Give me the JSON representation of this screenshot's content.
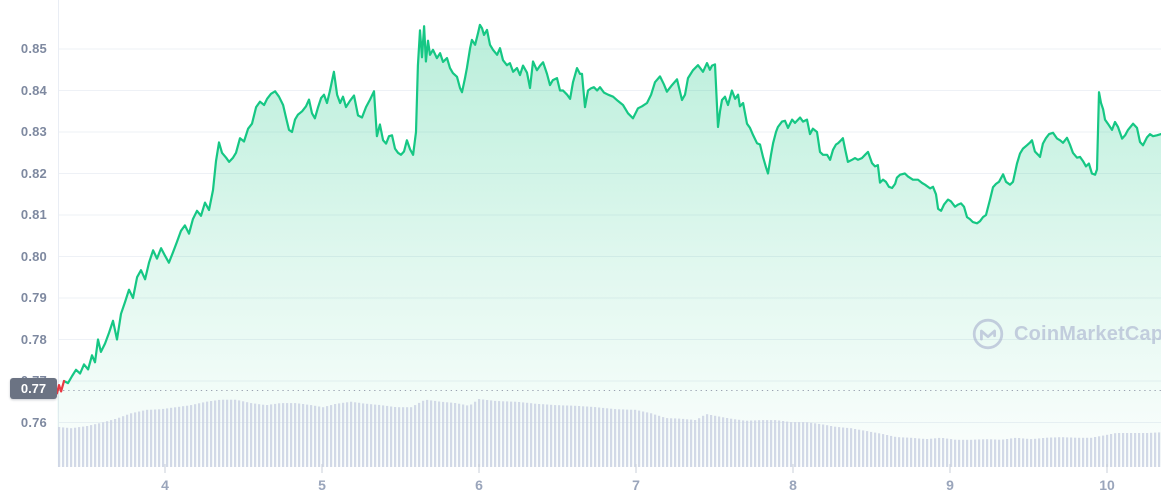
{
  "watermark": {
    "label": "CoinMarketCap"
  },
  "chart_data": {
    "type": "area",
    "title": "",
    "xlabel": "",
    "ylabel": "",
    "legend": "none",
    "grid": "horizontal",
    "x_axis": {
      "ticks": [
        "4",
        "5",
        "6",
        "7",
        "8",
        "9",
        "10"
      ],
      "range": [
        3.312,
        10.344
      ]
    },
    "y_axis": {
      "ticks": [
        "0.85",
        "0.84",
        "0.83",
        "0.82",
        "0.81",
        "0.80",
        "0.79",
        "0.78",
        "0.77",
        "0.76"
      ],
      "range": [
        0.749,
        0.862
      ]
    },
    "current_price_label": "0.77",
    "dotted_price_level": 0.7677,
    "red_until_day": 3.36,
    "colors": {
      "line_up": "#16c784",
      "line_down": "#ea3943",
      "fill_base": "22,199,132",
      "volume_bar": "#ccd3e4",
      "gridline": "#eef1f6",
      "axis_line": "#e9edf4",
      "dotted_line": "#9aa2b1",
      "tick_mark": "#c9cfda",
      "y_text": "#7e89a0",
      "x_text": "#9aa5bb",
      "badge_bg": "#6b7383",
      "watermark": "#aab3cf"
    },
    "price_series": [
      [
        3.312,
        0.767
      ],
      [
        3.325,
        0.769
      ],
      [
        3.338,
        0.7675
      ],
      [
        3.357,
        0.77
      ],
      [
        3.382,
        0.7695
      ],
      [
        3.408,
        0.7712
      ],
      [
        3.433,
        0.7727
      ],
      [
        3.459,
        0.7718
      ],
      [
        3.484,
        0.774
      ],
      [
        3.51,
        0.7728
      ],
      [
        3.535,
        0.7762
      ],
      [
        3.554,
        0.7745
      ],
      [
        3.573,
        0.78
      ],
      [
        3.592,
        0.777
      ],
      [
        3.618,
        0.779
      ],
      [
        3.643,
        0.7816
      ],
      [
        3.669,
        0.7845
      ],
      [
        3.694,
        0.78
      ],
      [
        3.72,
        0.7862
      ],
      [
        3.745,
        0.789
      ],
      [
        3.771,
        0.792
      ],
      [
        3.796,
        0.79
      ],
      [
        3.822,
        0.795
      ],
      [
        3.847,
        0.7967
      ],
      [
        3.873,
        0.7945
      ],
      [
        3.898,
        0.7985
      ],
      [
        3.924,
        0.8015
      ],
      [
        3.949,
        0.7995
      ],
      [
        3.975,
        0.802
      ],
      [
        4.0,
        0.8002
      ],
      [
        4.025,
        0.7985
      ],
      [
        4.051,
        0.801
      ],
      [
        4.076,
        0.8035
      ],
      [
        4.102,
        0.8062
      ],
      [
        4.127,
        0.8075
      ],
      [
        4.153,
        0.8055
      ],
      [
        4.178,
        0.809
      ],
      [
        4.204,
        0.811
      ],
      [
        4.229,
        0.8098
      ],
      [
        4.255,
        0.813
      ],
      [
        4.28,
        0.8112
      ],
      [
        4.306,
        0.816
      ],
      [
        4.325,
        0.823
      ],
      [
        4.344,
        0.8275
      ],
      [
        4.363,
        0.825
      ],
      [
        4.389,
        0.8238
      ],
      [
        4.408,
        0.8228
      ],
      [
        4.433,
        0.8238
      ],
      [
        4.452,
        0.825
      ],
      [
        4.478,
        0.8285
      ],
      [
        4.503,
        0.8277
      ],
      [
        4.529,
        0.8308
      ],
      [
        4.554,
        0.832
      ],
      [
        4.58,
        0.836
      ],
      [
        4.605,
        0.8373
      ],
      [
        4.631,
        0.8365
      ],
      [
        4.65,
        0.838
      ],
      [
        4.675,
        0.8392
      ],
      [
        4.701,
        0.8398
      ],
      [
        4.726,
        0.8385
      ],
      [
        4.752,
        0.8365
      ],
      [
        4.771,
        0.8335
      ],
      [
        4.79,
        0.8305
      ],
      [
        4.809,
        0.83
      ],
      [
        4.828,
        0.833
      ],
      [
        4.847,
        0.8342
      ],
      [
        4.873,
        0.835
      ],
      [
        4.898,
        0.8362
      ],
      [
        4.917,
        0.8378
      ],
      [
        4.936,
        0.8345
      ],
      [
        4.955,
        0.8333
      ],
      [
        4.975,
        0.836
      ],
      [
        4.994,
        0.8382
      ],
      [
        5.013,
        0.839
      ],
      [
        5.032,
        0.837
      ],
      [
        5.051,
        0.84
      ],
      [
        5.076,
        0.8445
      ],
      [
        5.096,
        0.839
      ],
      [
        5.115,
        0.837
      ],
      [
        5.134,
        0.8385
      ],
      [
        5.153,
        0.836
      ],
      [
        5.178,
        0.8375
      ],
      [
        5.204,
        0.8388
      ],
      [
        5.229,
        0.834
      ],
      [
        5.255,
        0.8335
      ],
      [
        5.28,
        0.836
      ],
      [
        5.306,
        0.8378
      ],
      [
        5.331,
        0.8398
      ],
      [
        5.35,
        0.829
      ],
      [
        5.369,
        0.8318
      ],
      [
        5.389,
        0.828
      ],
      [
        5.408,
        0.8272
      ],
      [
        5.427,
        0.829
      ],
      [
        5.446,
        0.8292
      ],
      [
        5.465,
        0.826
      ],
      [
        5.484,
        0.825
      ],
      [
        5.503,
        0.8245
      ],
      [
        5.522,
        0.8253
      ],
      [
        5.541,
        0.828
      ],
      [
        5.561,
        0.8258
      ],
      [
        5.58,
        0.8245
      ],
      [
        5.599,
        0.83
      ],
      [
        5.611,
        0.846
      ],
      [
        5.624,
        0.8545
      ],
      [
        5.637,
        0.848
      ],
      [
        5.65,
        0.8555
      ],
      [
        5.662,
        0.847
      ],
      [
        5.675,
        0.852
      ],
      [
        5.688,
        0.8486
      ],
      [
        5.707,
        0.8498
      ],
      [
        5.732,
        0.8478
      ],
      [
        5.752,
        0.849
      ],
      [
        5.771,
        0.8469
      ],
      [
        5.796,
        0.8478
      ],
      [
        5.815,
        0.8454
      ],
      [
        5.834,
        0.8442
      ],
      [
        5.86,
        0.8433
      ],
      [
        5.879,
        0.8406
      ],
      [
        5.892,
        0.8396
      ],
      [
        5.911,
        0.843
      ],
      [
        5.923,
        0.8454
      ],
      [
        5.943,
        0.8502
      ],
      [
        5.955,
        0.8522
      ],
      [
        5.975,
        0.851
      ],
      [
        5.994,
        0.8539
      ],
      [
        6.006,
        0.8558
      ],
      [
        6.019,
        0.855
      ],
      [
        6.032,
        0.8534
      ],
      [
        6.051,
        0.8546
      ],
      [
        6.07,
        0.851
      ],
      [
        6.089,
        0.8498
      ],
      [
        6.115,
        0.8486
      ],
      [
        6.134,
        0.8502
      ],
      [
        6.153,
        0.8473
      ],
      [
        6.178,
        0.8461
      ],
      [
        6.197,
        0.8466
      ],
      [
        6.217,
        0.8445
      ],
      [
        6.242,
        0.8454
      ],
      [
        6.261,
        0.8437
      ],
      [
        6.28,
        0.846
      ],
      [
        6.306,
        0.8443
      ],
      [
        6.325,
        0.8406
      ],
      [
        6.344,
        0.847
      ],
      [
        6.369,
        0.8449
      ],
      [
        6.389,
        0.846
      ],
      [
        6.408,
        0.8468
      ],
      [
        6.433,
        0.844
      ],
      [
        6.452,
        0.8413
      ],
      [
        6.471,
        0.8425
      ],
      [
        6.497,
        0.843
      ],
      [
        6.516,
        0.84
      ],
      [
        6.535,
        0.84
      ],
      [
        6.561,
        0.839
      ],
      [
        6.58,
        0.838
      ],
      [
        6.599,
        0.842
      ],
      [
        6.624,
        0.8454
      ],
      [
        6.643,
        0.844
      ],
      [
        6.656,
        0.844
      ],
      [
        6.675,
        0.836
      ],
      [
        6.694,
        0.84
      ],
      [
        6.713,
        0.8405
      ],
      [
        6.732,
        0.8408
      ],
      [
        6.752,
        0.84
      ],
      [
        6.771,
        0.8408
      ],
      [
        6.796,
        0.8395
      ],
      [
        6.822,
        0.839
      ],
      [
        6.854,
        0.8385
      ],
      [
        6.885,
        0.8375
      ],
      [
        6.917,
        0.8365
      ],
      [
        6.949,
        0.8345
      ],
      [
        6.981,
        0.8333
      ],
      [
        7.013,
        0.8357
      ],
      [
        7.038,
        0.8362
      ],
      [
        7.07,
        0.837
      ],
      [
        7.096,
        0.839
      ],
      [
        7.121,
        0.842
      ],
      [
        7.153,
        0.8434
      ],
      [
        7.178,
        0.8415
      ],
      [
        7.197,
        0.8397
      ],
      [
        7.229,
        0.8413
      ],
      [
        7.261,
        0.8427
      ],
      [
        7.293,
        0.8377
      ],
      [
        7.312,
        0.839
      ],
      [
        7.331,
        0.843
      ],
      [
        7.363,
        0.8449
      ],
      [
        7.395,
        0.8461
      ],
      [
        7.427,
        0.8445
      ],
      [
        7.452,
        0.8466
      ],
      [
        7.471,
        0.845
      ],
      [
        7.484,
        0.846
      ],
      [
        7.503,
        0.8463
      ],
      [
        7.522,
        0.8312
      ],
      [
        7.535,
        0.835
      ],
      [
        7.548,
        0.8377
      ],
      [
        7.567,
        0.8385
      ],
      [
        7.586,
        0.8365
      ],
      [
        7.611,
        0.84
      ],
      [
        7.631,
        0.838
      ],
      [
        7.65,
        0.839
      ],
      [
        7.662,
        0.8362
      ],
      [
        7.682,
        0.837
      ],
      [
        7.707,
        0.832
      ],
      [
        7.726,
        0.831
      ],
      [
        7.745,
        0.8293
      ],
      [
        7.771,
        0.8273
      ],
      [
        7.79,
        0.827
      ],
      [
        7.809,
        0.824
      ],
      [
        7.828,
        0.8215
      ],
      [
        7.841,
        0.82
      ],
      [
        7.86,
        0.8245
      ],
      [
        7.873,
        0.8273
      ],
      [
        7.892,
        0.83
      ],
      [
        7.904,
        0.8312
      ],
      [
        7.93,
        0.8325
      ],
      [
        7.949,
        0.8327
      ],
      [
        7.968,
        0.831
      ],
      [
        7.994,
        0.833
      ],
      [
        8.013,
        0.8322
      ],
      [
        8.045,
        0.8335
      ],
      [
        8.064,
        0.8325
      ],
      [
        8.089,
        0.833
      ],
      [
        8.108,
        0.8295
      ],
      [
        8.127,
        0.8308
      ],
      [
        8.153,
        0.83
      ],
      [
        8.172,
        0.8252
      ],
      [
        8.191,
        0.8245
      ],
      [
        8.217,
        0.8245
      ],
      [
        8.236,
        0.8233
      ],
      [
        8.255,
        0.8257
      ],
      [
        8.274,
        0.827
      ],
      [
        8.287,
        0.8273
      ],
      [
        8.306,
        0.828
      ],
      [
        8.318,
        0.8285
      ],
      [
        8.331,
        0.826
      ],
      [
        8.35,
        0.8228
      ],
      [
        8.376,
        0.8233
      ],
      [
        8.395,
        0.8237
      ],
      [
        8.414,
        0.8233
      ],
      [
        8.439,
        0.8237
      ],
      [
        8.459,
        0.8245
      ],
      [
        8.478,
        0.8252
      ],
      [
        8.503,
        0.8225
      ],
      [
        8.522,
        0.8217
      ],
      [
        8.541,
        0.822
      ],
      [
        8.554,
        0.8178
      ],
      [
        8.573,
        0.8185
      ],
      [
        8.592,
        0.818
      ],
      [
        8.611,
        0.8168
      ],
      [
        8.631,
        0.8165
      ],
      [
        8.65,
        0.8175
      ],
      [
        8.662,
        0.819
      ],
      [
        8.682,
        0.8197
      ],
      [
        8.713,
        0.82
      ],
      [
        8.732,
        0.8193
      ],
      [
        8.764,
        0.8185
      ],
      [
        8.796,
        0.8185
      ],
      [
        8.822,
        0.8177
      ],
      [
        8.841,
        0.8173
      ],
      [
        8.873,
        0.8164
      ],
      [
        8.892,
        0.8168
      ],
      [
        8.911,
        0.815
      ],
      [
        8.924,
        0.8115
      ],
      [
        8.943,
        0.811
      ],
      [
        8.962,
        0.8125
      ],
      [
        8.987,
        0.8137
      ],
      [
        9.006,
        0.8133
      ],
      [
        9.032,
        0.812
      ],
      [
        9.051,
        0.8125
      ],
      [
        9.07,
        0.8128
      ],
      [
        9.089,
        0.812
      ],
      [
        9.108,
        0.8095
      ],
      [
        9.127,
        0.809
      ],
      [
        9.146,
        0.8083
      ],
      [
        9.172,
        0.808
      ],
      [
        9.191,
        0.8085
      ],
      [
        9.21,
        0.8095
      ],
      [
        9.229,
        0.81
      ],
      [
        9.255,
        0.8137
      ],
      [
        9.274,
        0.8167
      ],
      [
        9.293,
        0.8175
      ],
      [
        9.312,
        0.818
      ],
      [
        9.338,
        0.8198
      ],
      [
        9.357,
        0.818
      ],
      [
        9.382,
        0.8173
      ],
      [
        9.401,
        0.818
      ],
      [
        9.427,
        0.8224
      ],
      [
        9.446,
        0.8248
      ],
      [
        9.465,
        0.826
      ],
      [
        9.49,
        0.8268
      ],
      [
        9.51,
        0.8275
      ],
      [
        9.522,
        0.828
      ],
      [
        9.541,
        0.8253
      ],
      [
        9.561,
        0.8245
      ],
      [
        9.573,
        0.824
      ],
      [
        9.592,
        0.8272
      ],
      [
        9.611,
        0.8285
      ],
      [
        9.631,
        0.8295
      ],
      [
        9.656,
        0.8298
      ],
      [
        9.682,
        0.8284
      ],
      [
        9.701,
        0.828
      ],
      [
        9.72,
        0.8274
      ],
      [
        9.745,
        0.8286
      ],
      [
        9.764,
        0.827
      ],
      [
        9.783,
        0.825
      ],
      [
        9.809,
        0.8238
      ],
      [
        9.828,
        0.824
      ],
      [
        9.847,
        0.823
      ],
      [
        9.866,
        0.8217
      ],
      [
        9.885,
        0.8224
      ],
      [
        9.904,
        0.82
      ],
      [
        9.924,
        0.8197
      ],
      [
        9.936,
        0.821
      ],
      [
        9.949,
        0.8396
      ],
      [
        9.962,
        0.837
      ],
      [
        9.975,
        0.8355
      ],
      [
        9.987,
        0.833
      ],
      [
        10.006,
        0.832
      ],
      [
        10.032,
        0.8305
      ],
      [
        10.051,
        0.8324
      ],
      [
        10.07,
        0.8312
      ],
      [
        10.096,
        0.8284
      ],
      [
        10.115,
        0.8292
      ],
      [
        10.134,
        0.8305
      ],
      [
        10.166,
        0.832
      ],
      [
        10.191,
        0.831
      ],
      [
        10.21,
        0.8276
      ],
      [
        10.229,
        0.8268
      ],
      [
        10.255,
        0.8287
      ],
      [
        10.274,
        0.8295
      ],
      [
        10.293,
        0.829
      ],
      [
        10.318,
        0.8292
      ],
      [
        10.344,
        0.8295
      ]
    ],
    "volume_series": [
      [
        3.312,
        0.59
      ],
      [
        3.395,
        0.57
      ],
      [
        3.49,
        0.6
      ],
      [
        3.586,
        0.65
      ],
      [
        3.682,
        0.71
      ],
      [
        3.777,
        0.79
      ],
      [
        3.873,
        0.84
      ],
      [
        3.968,
        0.85
      ],
      [
        4.064,
        0.88
      ],
      [
        4.159,
        0.91
      ],
      [
        4.255,
        0.96
      ],
      [
        4.35,
        0.99
      ],
      [
        4.446,
        0.99
      ],
      [
        4.541,
        0.94
      ],
      [
        4.637,
        0.91
      ],
      [
        4.732,
        0.94
      ],
      [
        4.828,
        0.94
      ],
      [
        4.924,
        0.91
      ],
      [
        5.0,
        0.88
      ],
      [
        5.083,
        0.93
      ],
      [
        5.178,
        0.96
      ],
      [
        5.274,
        0.93
      ],
      [
        5.369,
        0.91
      ],
      [
        5.465,
        0.88
      ],
      [
        5.561,
        0.88
      ],
      [
        5.65,
        0.99
      ],
      [
        5.752,
        0.96
      ],
      [
        5.847,
        0.94
      ],
      [
        5.93,
        0.9
      ],
      [
        5.994,
        1.0
      ],
      [
        6.102,
        0.97
      ],
      [
        6.229,
        0.96
      ],
      [
        6.357,
        0.93
      ],
      [
        6.484,
        0.91
      ],
      [
        6.611,
        0.9
      ],
      [
        6.739,
        0.88
      ],
      [
        6.866,
        0.85
      ],
      [
        6.994,
        0.84
      ],
      [
        7.089,
        0.79
      ],
      [
        7.185,
        0.72
      ],
      [
        7.28,
        0.71
      ],
      [
        7.376,
        0.69
      ],
      [
        7.439,
        0.78
      ],
      [
        7.503,
        0.75
      ],
      [
        7.599,
        0.71
      ],
      [
        7.694,
        0.68
      ],
      [
        7.79,
        0.69
      ],
      [
        7.885,
        0.69
      ],
      [
        7.981,
        0.66
      ],
      [
        8.076,
        0.66
      ],
      [
        8.172,
        0.63
      ],
      [
        8.268,
        0.59
      ],
      [
        8.363,
        0.57
      ],
      [
        8.459,
        0.53
      ],
      [
        8.554,
        0.49
      ],
      [
        8.65,
        0.44
      ],
      [
        8.745,
        0.43
      ],
      [
        8.841,
        0.41
      ],
      [
        8.936,
        0.43
      ],
      [
        9.032,
        0.4
      ],
      [
        9.127,
        0.4
      ],
      [
        9.223,
        0.41
      ],
      [
        9.318,
        0.4
      ],
      [
        9.414,
        0.43
      ],
      [
        9.51,
        0.41
      ],
      [
        9.605,
        0.43
      ],
      [
        9.701,
        0.44
      ],
      [
        9.796,
        0.43
      ],
      [
        9.892,
        0.43
      ],
      [
        9.987,
        0.47
      ],
      [
        10.051,
        0.5
      ],
      [
        10.147,
        0.5
      ],
      [
        10.242,
        0.5
      ],
      [
        10.344,
        0.51
      ]
    ]
  }
}
